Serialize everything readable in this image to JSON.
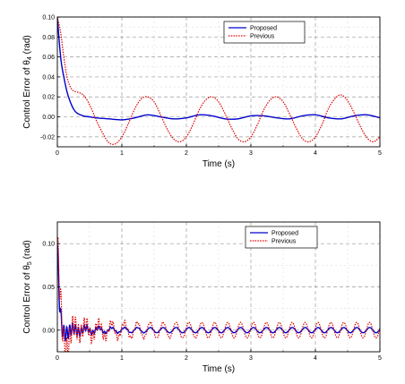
{
  "chart_data": [
    {
      "type": "line",
      "xlabel": "Time (s)",
      "ylabel": "Control Error of θ",
      "ylabel_sub": "4",
      "ylabel_unit": " (rad)",
      "xlim": [
        0,
        5
      ],
      "ylim": [
        -0.03,
        0.1
      ],
      "xticks": [
        "0",
        "1",
        "2",
        "3",
        "4",
        "5"
      ],
      "yticks": [
        "-0.02",
        "0.00",
        "0.02",
        "0.04",
        "0.06",
        "0.08",
        "0.10"
      ],
      "grid": true,
      "legend_position": "top-right",
      "series": [
        {
          "name": "Proposed",
          "color": "#0000cc",
          "style": "solid",
          "x": [
            0,
            0.03,
            0.06,
            0.1,
            0.15,
            0.2,
            0.25,
            0.3,
            0.4,
            0.5,
            0.6,
            0.8,
            1.0,
            1.2,
            1.4,
            1.6,
            1.8,
            2.0,
            2.2,
            2.4,
            2.6,
            2.8,
            3.0,
            3.2,
            3.4,
            3.6,
            3.8,
            4.0,
            4.2,
            4.4,
            4.6,
            4.8,
            5.0
          ],
          "y": [
            0.1,
            0.075,
            0.055,
            0.04,
            0.025,
            0.015,
            0.008,
            0.004,
            0.001,
            0.0,
            -0.001,
            -0.002,
            -0.003,
            -0.001,
            0.002,
            0.0,
            -0.002,
            -0.001,
            0.002,
            0.001,
            -0.002,
            -0.002,
            0.001,
            0.001,
            -0.001,
            -0.002,
            0.001,
            0.002,
            -0.001,
            -0.002,
            0.001,
            0.002,
            -0.001
          ]
        },
        {
          "name": "Previous",
          "color": "#dd0000",
          "style": "dotted",
          "x": [
            0,
            0.05,
            0.1,
            0.15,
            0.2,
            0.25,
            0.3,
            0.35,
            0.4,
            0.45,
            0.5,
            0.55,
            0.6,
            0.7,
            0.8,
            0.9,
            1.0,
            1.1,
            1.2,
            1.3,
            1.4,
            1.5,
            1.6,
            1.7,
            1.8,
            1.9,
            2.0,
            2.1,
            2.2,
            2.3,
            2.4,
            2.5,
            2.6,
            2.7,
            2.8,
            2.9,
            3.0,
            3.1,
            3.2,
            3.3,
            3.4,
            3.5,
            3.6,
            3.7,
            3.8,
            3.9,
            4.0,
            4.1,
            4.2,
            4.3,
            4.4,
            4.5,
            4.6,
            4.7,
            4.8,
            4.9,
            5.0
          ],
          "y": [
            0.1,
            0.085,
            0.06,
            0.04,
            0.03,
            0.026,
            0.025,
            0.024,
            0.022,
            0.018,
            0.012,
            0.005,
            -0.003,
            -0.016,
            -0.026,
            -0.027,
            -0.02,
            -0.007,
            0.008,
            0.018,
            0.02,
            0.015,
            0.002,
            -0.012,
            -0.022,
            -0.025,
            -0.02,
            -0.008,
            0.007,
            0.017,
            0.02,
            0.015,
            0.003,
            -0.011,
            -0.022,
            -0.025,
            -0.02,
            -0.008,
            0.007,
            0.017,
            0.02,
            0.015,
            0.003,
            -0.011,
            -0.022,
            -0.025,
            -0.02,
            -0.008,
            0.008,
            0.018,
            0.022,
            0.016,
            0.004,
            -0.01,
            -0.021,
            -0.025,
            -0.02
          ]
        }
      ]
    },
    {
      "type": "line",
      "xlabel": "Time (s)",
      "ylabel": "Control Error of θ",
      "ylabel_sub": "5",
      "ylabel_unit": " (rad)",
      "xlim": [
        0,
        5
      ],
      "ylim": [
        -0.025,
        0.125
      ],
      "xticks": [
        "0",
        "1",
        "2",
        "3",
        "4",
        "5"
      ],
      "yticks": [
        "0.00",
        "0.05",
        "0.10"
      ],
      "grid": true,
      "legend_position": "top-right",
      "series": [
        {
          "name": "Proposed",
          "color": "#0000cc",
          "style": "solid",
          "damp": {
            "start": 0.1,
            "osc_amp": 0.003,
            "period": 0.2,
            "decay": 0.04,
            "noise_amp": 0.012,
            "noise_decay": 0.35
          }
        },
        {
          "name": "Previous",
          "color": "#dd0000",
          "style": "dotted",
          "damp": {
            "start": 0.1,
            "osc_amp": 0.009,
            "period": 0.2,
            "decay": 0.09,
            "noise_amp": 0.02,
            "noise_decay": 0.5
          }
        }
      ]
    }
  ]
}
